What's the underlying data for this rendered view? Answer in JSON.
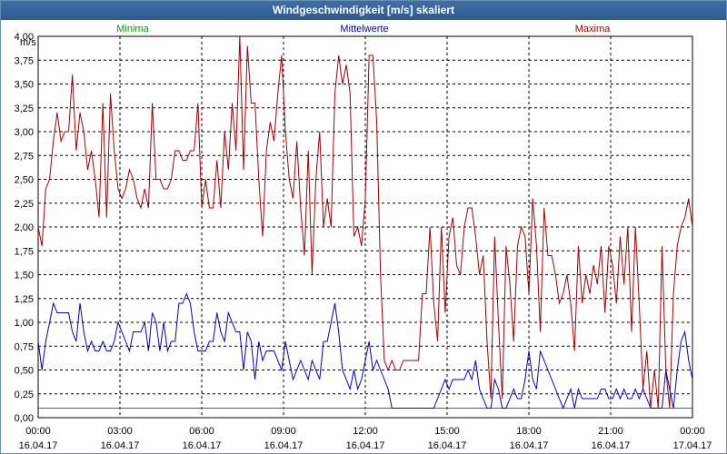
{
  "window": {
    "title": "Windgeschwindigkeit [m/s] skaliert"
  },
  "colors": {
    "minima": "#00a000",
    "mean": "#0000c0",
    "maxima": "#a00000",
    "grid": "#000000",
    "titlebar": "#2d5a90"
  },
  "chart_data": {
    "type": "line",
    "title": "Windgeschwindigkeit [m/s] skaliert",
    "ylabel": "m/s",
    "ylim": [
      0,
      4
    ],
    "yticks": [
      "0,00",
      "0,25",
      "0,50",
      "0,75",
      "1,00",
      "1,25",
      "1,50",
      "1,75",
      "2,00",
      "2,25",
      "2,50",
      "2,75",
      "3,00",
      "3,25",
      "3,50",
      "3,75",
      "4,00"
    ],
    "xlim": [
      "16.04.17 00:00",
      "17.04.17 00:00"
    ],
    "xticks": [
      {
        "time": "00:00",
        "date": "16.04.17"
      },
      {
        "time": "03:00",
        "date": "16.04.17"
      },
      {
        "time": "06:00",
        "date": "16.04.17"
      },
      {
        "time": "09:00",
        "date": "16.04.17"
      },
      {
        "time": "12:00",
        "date": "16.04.17"
      },
      {
        "time": "15:00",
        "date": "16.04.17"
      },
      {
        "time": "18:00",
        "date": "16.04.17"
      },
      {
        "time": "21:00",
        "date": "16.04.17"
      },
      {
        "time": "00:00",
        "date": "17.04.17"
      }
    ],
    "grid": true,
    "legend_position": "top",
    "sampling_minutes": 10,
    "series": [
      {
        "name": "Minima",
        "color": "#00a000",
        "values": [
          0.1,
          0.1,
          0.1,
          0.1,
          0.1,
          0.1,
          0.1,
          0.1,
          0.1,
          0.1,
          0.1,
          0.1,
          0.1,
          0.1,
          0.1,
          0.1,
          0.1,
          0.1,
          0.1,
          0.1,
          0.1,
          0.1,
          0.1,
          0.1,
          0.1,
          0.1,
          0.1,
          0.1,
          0.1,
          0.1,
          0.1,
          0.1,
          0.1,
          0.1,
          0.1,
          0.1,
          0.1,
          0.1,
          0.1,
          0.1,
          0.1,
          0.1,
          0.1,
          0.1,
          0.1,
          0.1,
          0.1,
          0.1,
          0.1,
          0.1,
          0.1,
          0.1,
          0.1,
          0.1,
          0.1,
          0.1,
          0.1,
          0.1,
          0.1,
          0.1,
          0.1,
          0.1,
          0.1,
          0.1,
          0.1,
          0.1,
          0.1,
          0.1,
          0.1,
          0.1,
          0.1,
          0.1,
          0.1,
          0.1,
          0.1,
          0.1,
          0.1,
          0.1,
          0.1,
          0.1,
          0.1,
          0.1,
          0.1,
          0.1,
          0.1,
          0.1,
          0.1,
          0.1,
          0.1,
          0.1,
          0.1,
          0.1,
          0.1,
          0.1,
          0.1,
          0.1,
          0.1,
          0.1,
          0.1,
          0.1,
          0.1,
          0.1,
          0.1,
          0.1,
          0.1,
          0.1,
          0.1,
          0.1,
          0.1,
          0.1,
          0.1,
          0.1,
          0.1,
          0.1,
          0.1,
          0.1,
          0.1,
          0.1,
          0.1,
          0.1,
          0.1,
          0.1,
          0.1,
          0.1,
          0.1,
          0.1,
          0.1,
          0.1,
          0.1,
          0.1,
          0.1,
          0.1,
          0.1,
          0.1,
          0.1,
          0.1,
          0.1,
          0.1,
          0.1,
          0.1,
          0.1,
          0.1,
          0.1,
          0.1
        ]
      },
      {
        "name": "Mittelwerte",
        "color": "#0000c0",
        "values": [
          0.8,
          0.5,
          0.8,
          1.0,
          1.2,
          1.1,
          1.1,
          1.1,
          1.1,
          0.9,
          0.8,
          1.2,
          0.9,
          0.7,
          0.8,
          0.7,
          0.7,
          0.8,
          0.7,
          0.7,
          0.8,
          1.0,
          0.9,
          0.8,
          0.7,
          0.9,
          0.9,
          0.9,
          1.0,
          0.7,
          1.1,
          1.0,
          0.7,
          1.0,
          0.7,
          0.8,
          0.8,
          1.2,
          1.2,
          1.3,
          1.2,
          0.9,
          0.7,
          0.7,
          0.7,
          0.8,
          0.8,
          1.1,
          0.9,
          0.8,
          1.1,
          1.0,
          0.9,
          0.9,
          0.5,
          0.9,
          0.8,
          0.4,
          0.8,
          0.6,
          0.7,
          0.7,
          0.7,
          0.6,
          0.5,
          0.8,
          0.6,
          0.4,
          0.5,
          0.6,
          0.5,
          0.4,
          0.6,
          0.5,
          0.4,
          0.8,
          0.8,
          1.0,
          1.2,
          0.9,
          0.5,
          0.4,
          0.3,
          0.5,
          0.3,
          0.4,
          0.6,
          0.8,
          0.5,
          0.6,
          0.5,
          0.4,
          0.3,
          0.1,
          0.1,
          0.1,
          0.1,
          0.1,
          0.1,
          0.1,
          0.1,
          0.1,
          0.1,
          0.1,
          0.1,
          0.2,
          0.3,
          0.4,
          0.3,
          0.4,
          0.4,
          0.4,
          0.4,
          0.5,
          0.4,
          0.6,
          0.3,
          0.2,
          0.1,
          0.1,
          0.4,
          0.3,
          0.1,
          0.1,
          0.2,
          0.3,
          0.2,
          0.2,
          0.4,
          0.7,
          0.4,
          0.3,
          0.7,
          0.6,
          0.5,
          0.4,
          0.3,
          0.2,
          0.1,
          0.2,
          0.3,
          0.1,
          0.3,
          0.2,
          0.2,
          0.2,
          0.2,
          0.2,
          0.3,
          0.3,
          0.2,
          0.2,
          0.3,
          0.2,
          0.3,
          0.2,
          0.2,
          0.3,
          0.2,
          0.3,
          0.2,
          0.1,
          0.1,
          0.1,
          0.1,
          0.5,
          0.3,
          0.1,
          0.5,
          0.8,
          0.9,
          0.6,
          0.4
        ]
      },
      {
        "name": "Maxima",
        "color": "#a00000",
        "values": [
          2.0,
          1.8,
          2.4,
          2.5,
          2.9,
          3.2,
          2.9,
          3.0,
          3.0,
          3.6,
          2.8,
          3.2,
          3.0,
          2.6,
          2.8,
          2.5,
          2.1,
          3.3,
          2.1,
          3.4,
          2.8,
          2.4,
          2.3,
          2.4,
          2.6,
          2.5,
          2.3,
          2.2,
          2.4,
          2.2,
          3.3,
          2.5,
          2.5,
          2.4,
          2.4,
          2.5,
          2.8,
          2.8,
          2.7,
          2.7,
          2.8,
          2.8,
          3.3,
          2.2,
          2.5,
          2.2,
          2.2,
          2.7,
          2.2,
          3.0,
          2.6,
          3.3,
          2.8,
          4.0,
          2.6,
          3.9,
          3.3,
          3.3,
          2.5,
          1.9,
          2.8,
          3.1,
          2.9,
          3.4,
          3.8,
          3.0,
          2.5,
          2.3,
          2.9,
          2.2,
          1.7,
          2.8,
          1.5,
          2.5,
          3.0,
          2.0,
          2.3,
          2.0,
          3.4,
          3.8,
          3.5,
          3.7,
          3.4,
          1.9,
          2.0,
          1.8,
          2.3,
          3.8,
          3.8,
          3.1,
          1.5,
          0.6,
          0.5,
          0.6,
          0.5,
          0.5,
          0.6,
          0.6,
          0.6,
          0.6,
          0.6,
          1.3,
          1.3,
          2.0,
          1.2,
          0.8,
          2.0,
          1.1,
          1.9,
          2.1,
          1.6,
          1.5,
          2.0,
          2.2,
          2.2,
          1.9,
          1.5,
          1.7,
          0.8,
          0.2,
          1.9,
          1.0,
          0.2,
          1.8,
          1.4,
          0.8,
          1.8,
          2.0,
          1.9,
          1.3,
          2.3,
          1.8,
          0.9,
          2.2,
          1.7,
          1.7,
          1.5,
          1.2,
          1.3,
          1.5,
          1.2,
          0.7,
          1.8,
          1.2,
          1.5,
          1.3,
          1.6,
          1.4,
          1.8,
          1.1,
          1.8,
          1.6,
          1.2,
          1.9,
          1.4,
          2.0,
          0.9,
          2.0,
          1.2,
          0.3,
          0.7,
          0.1,
          0.5,
          0.1,
          1.8,
          0.5,
          0.1,
          1.3,
          1.8,
          2.0,
          2.1,
          2.3,
          2.0
        ]
      }
    ]
  }
}
